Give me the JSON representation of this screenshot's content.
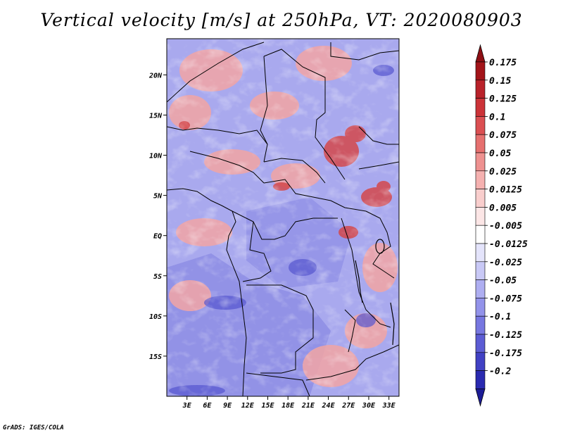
{
  "title": "Vertical velocity [m/s] at 250hPa, VT: 2020080903",
  "credit": "GrADS: IGES/COLA",
  "chart_data": {
    "type": "heatmap",
    "variable": "Vertical velocity",
    "units": "m/s",
    "level": "250hPa",
    "valid_time": "2020080903",
    "lat_range": [
      -20,
      24.5
    ],
    "lon_range": [
      0,
      34.5
    ],
    "y_ticks": [
      {
        "value": 20,
        "label": "20N"
      },
      {
        "value": 15,
        "label": "15N"
      },
      {
        "value": 10,
        "label": "10N"
      },
      {
        "value": 5,
        "label": "5N"
      },
      {
        "value": 0,
        "label": "EQ"
      },
      {
        "value": -5,
        "label": "5S"
      },
      {
        "value": -10,
        "label": "10S"
      },
      {
        "value": -15,
        "label": "15S"
      }
    ],
    "x_ticks": [
      {
        "value": 3,
        "label": "3E"
      },
      {
        "value": 6,
        "label": "6E"
      },
      {
        "value": 9,
        "label": "9E"
      },
      {
        "value": 12,
        "label": "12E"
      },
      {
        "value": 15,
        "label": "15E"
      },
      {
        "value": 18,
        "label": "18E"
      },
      {
        "value": 21,
        "label": "21E"
      },
      {
        "value": 24,
        "label": "24E"
      },
      {
        "value": 27,
        "label": "27E"
      },
      {
        "value": 30,
        "label": "30E"
      },
      {
        "value": 33,
        "label": "33E"
      }
    ],
    "colorbar": [
      {
        "label": "0.175",
        "color": "#a31419"
      },
      {
        "label": "0.15",
        "color": "#b9222a"
      },
      {
        "label": "0.125",
        "color": "#cc3338"
      },
      {
        "label": "0.1",
        "color": "#db4f52"
      },
      {
        "label": "0.075",
        "color": "#e6706f"
      },
      {
        "label": "0.05",
        "color": "#ee9190"
      },
      {
        "label": "0.025",
        "color": "#f5b1b0"
      },
      {
        "label": "0.0125",
        "color": "#f9cecd"
      },
      {
        "label": "0.005",
        "color": "#fce6e6"
      },
      {
        "label": "-0.005",
        "color": "#ffffff"
      },
      {
        "label": "-0.0125",
        "color": "#e4e4fb"
      },
      {
        "label": "-0.025",
        "color": "#c9c9f6"
      },
      {
        "label": "-0.05",
        "color": "#aeaef1"
      },
      {
        "label": "-0.075",
        "color": "#9393ea"
      },
      {
        "label": "-0.1",
        "color": "#7777e0"
      },
      {
        "label": "-0.125",
        "color": "#5c5cd4"
      },
      {
        "label": "-0.175",
        "color": "#4141c4"
      },
      {
        "label": "-0.2",
        "color": "#2a2ab0"
      }
    ],
    "colorbar_top_arrow": "#8e0f14",
    "colorbar_bottom_arrow": "#1c1c96"
  }
}
